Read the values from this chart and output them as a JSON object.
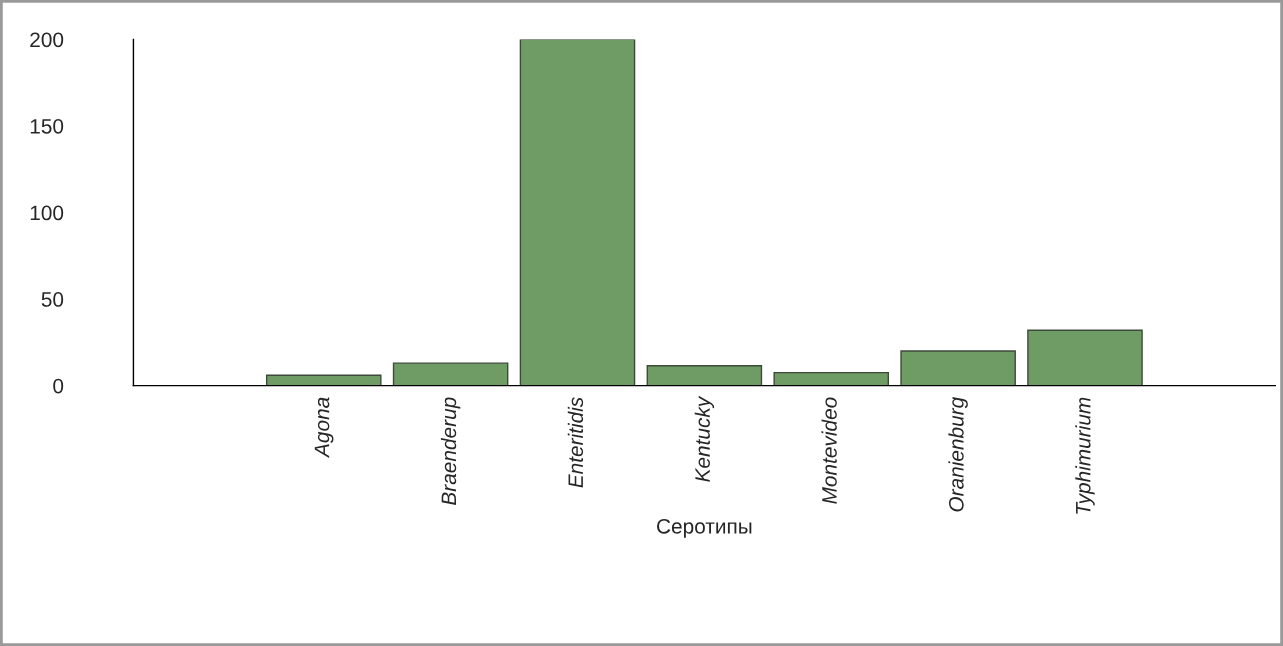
{
  "chart_data": {
    "type": "bar",
    "xlabel": "Серотипы",
    "categories": [
      null,
      "Agona",
      "Braenderup",
      "Enteritidis",
      "Kentucky",
      "Montevideo",
      "Oranienburg",
      "Typhimurium",
      null
    ],
    "values": [
      null,
      6,
      13,
      200,
      11.5,
      7.5,
      20,
      32,
      null
    ],
    "color": "#6f9b64",
    "ylim": [
      0,
      200
    ],
    "yticks": [
      0,
      50,
      100,
      150,
      200
    ],
    "grid": false,
    "legend": false
  }
}
